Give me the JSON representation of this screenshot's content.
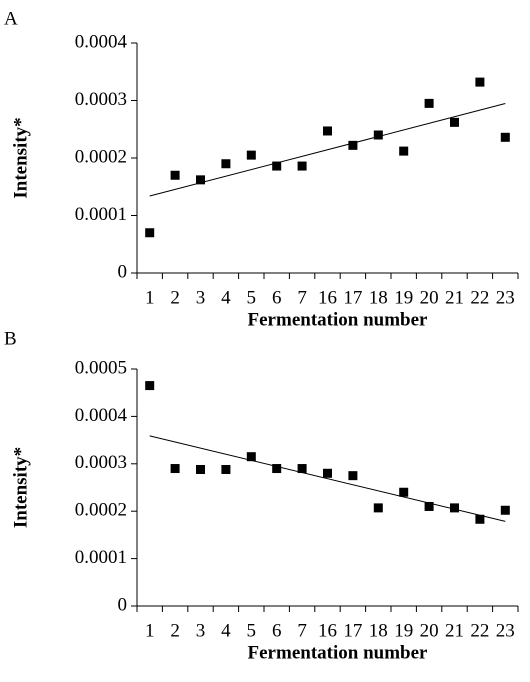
{
  "chart_data": [
    {
      "type": "scatter",
      "panel_label": "A",
      "ylabel": "Intensity*",
      "xlabel": "Fermentation number",
      "categories": [
        "1",
        "2",
        "3",
        "4",
        "5",
        "6",
        "7",
        "16",
        "17",
        "18",
        "19",
        "20",
        "21",
        "22",
        "23"
      ],
      "values": [
        7e-05,
        0.00017,
        0.000162,
        0.00019,
        0.000205,
        0.000186,
        0.000186,
        0.000247,
        0.000222,
        0.00024,
        0.000212,
        0.000295,
        0.000262,
        0.000332,
        0.000236
      ],
      "color": "#000000",
      "trendline": "linear",
      "ylim": [
        0,
        0.0004
      ],
      "yticks": [
        0,
        0.0001,
        0.0002,
        0.0003,
        0.0004
      ]
    },
    {
      "type": "scatter",
      "panel_label": "B",
      "ylabel": "Intensity*",
      "xlabel": "Fermentation number",
      "categories": [
        "1",
        "2",
        "3",
        "4",
        "5",
        "6",
        "7",
        "16",
        "17",
        "18",
        "19",
        "20",
        "21",
        "22",
        "23"
      ],
      "values": [
        0.000465,
        0.00029,
        0.000288,
        0.000288,
        0.000315,
        0.00029,
        0.00029,
        0.00028,
        0.000275,
        0.000207,
        0.00024,
        0.00021,
        0.000207,
        0.000183,
        0.000202
      ],
      "color": "#000000",
      "trendline": "linear",
      "ylim": [
        0,
        0.0005
      ],
      "yticks": [
        0,
        0.0001,
        0.0002,
        0.0003,
        0.0004,
        0.0005
      ]
    }
  ]
}
